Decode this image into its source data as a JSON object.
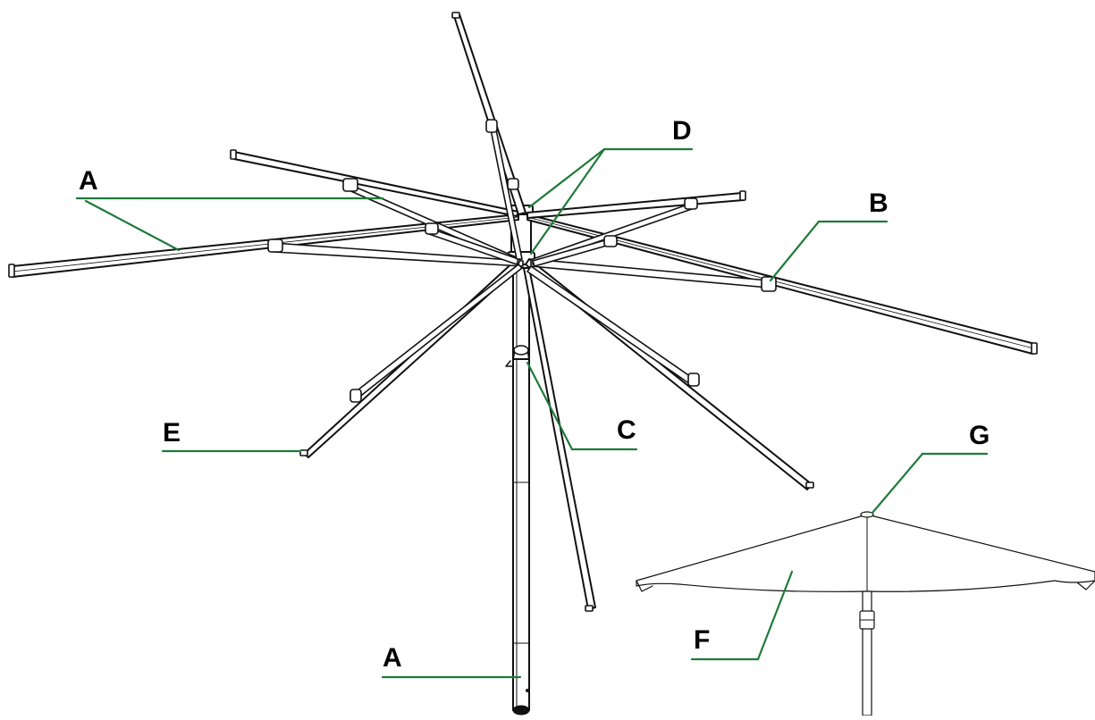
{
  "diagram": {
    "callouts": [
      {
        "id": "A-upper",
        "label": "A"
      },
      {
        "id": "D",
        "label": "D"
      },
      {
        "id": "B",
        "label": "B"
      },
      {
        "id": "E",
        "label": "E"
      },
      {
        "id": "C",
        "label": "C"
      },
      {
        "id": "G",
        "label": "G"
      },
      {
        "id": "F",
        "label": "F"
      },
      {
        "id": "A-lower",
        "label": "A"
      }
    ],
    "colors": {
      "leader_line": "#1f7a3a",
      "linework": "#111111",
      "background": "#ffffff"
    }
  }
}
